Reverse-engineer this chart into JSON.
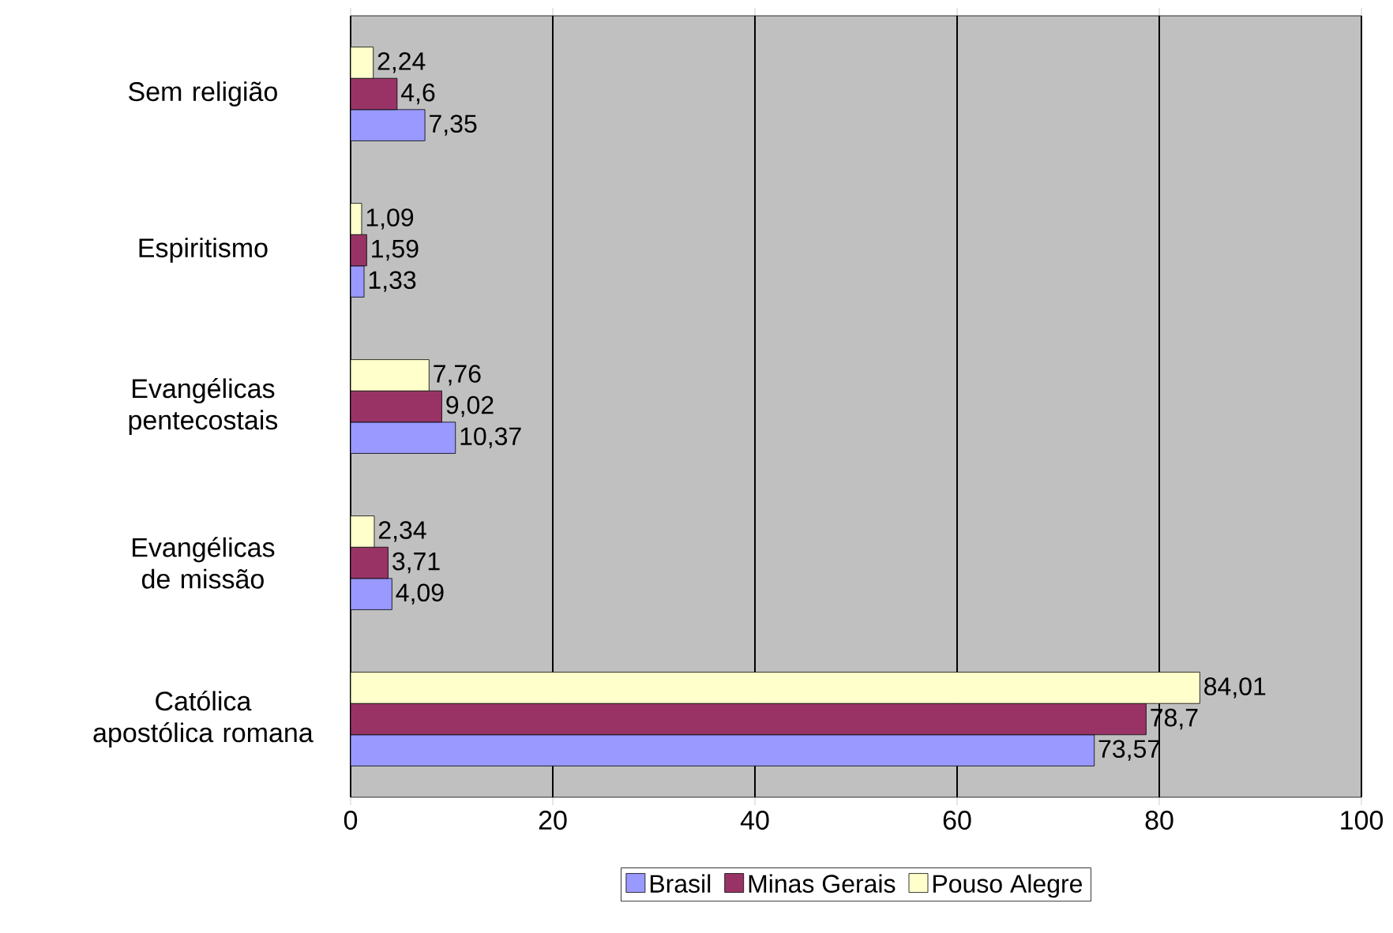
{
  "chart_data": {
    "type": "bar",
    "orientation": "horizontal",
    "categories": [
      "Sem religião",
      "Espiritismo",
      "Evangélicas pentecostais",
      "Evangélicas de missão",
      "Católica apostólica romana"
    ],
    "series": [
      {
        "name": "Brasil",
        "color": "#9999ff",
        "values": [
          7.35,
          1.33,
          10.37,
          4.09,
          73.57
        ],
        "value_labels": [
          "7,35",
          "1,33",
          "10,37",
          "4,09",
          "73,57"
        ]
      },
      {
        "name": "Minas Gerais",
        "color": "#993366",
        "values": [
          4.6,
          1.59,
          9.02,
          3.71,
          78.7
        ],
        "value_labels": [
          "4,6",
          "1,59",
          "9,02",
          "3,71",
          "78,7"
        ]
      },
      {
        "name": "Pouso Alegre",
        "color": "#ffffcc",
        "values": [
          2.24,
          1.09,
          7.76,
          2.34,
          84.01
        ],
        "value_labels": [
          "2,24",
          "1,09",
          "7,76",
          "2,34",
          "84,01"
        ]
      }
    ],
    "xlim": [
      0,
      100
    ],
    "xticks": [
      0,
      20,
      40,
      60,
      80,
      100
    ],
    "grid": "x",
    "legend": "bottom"
  }
}
